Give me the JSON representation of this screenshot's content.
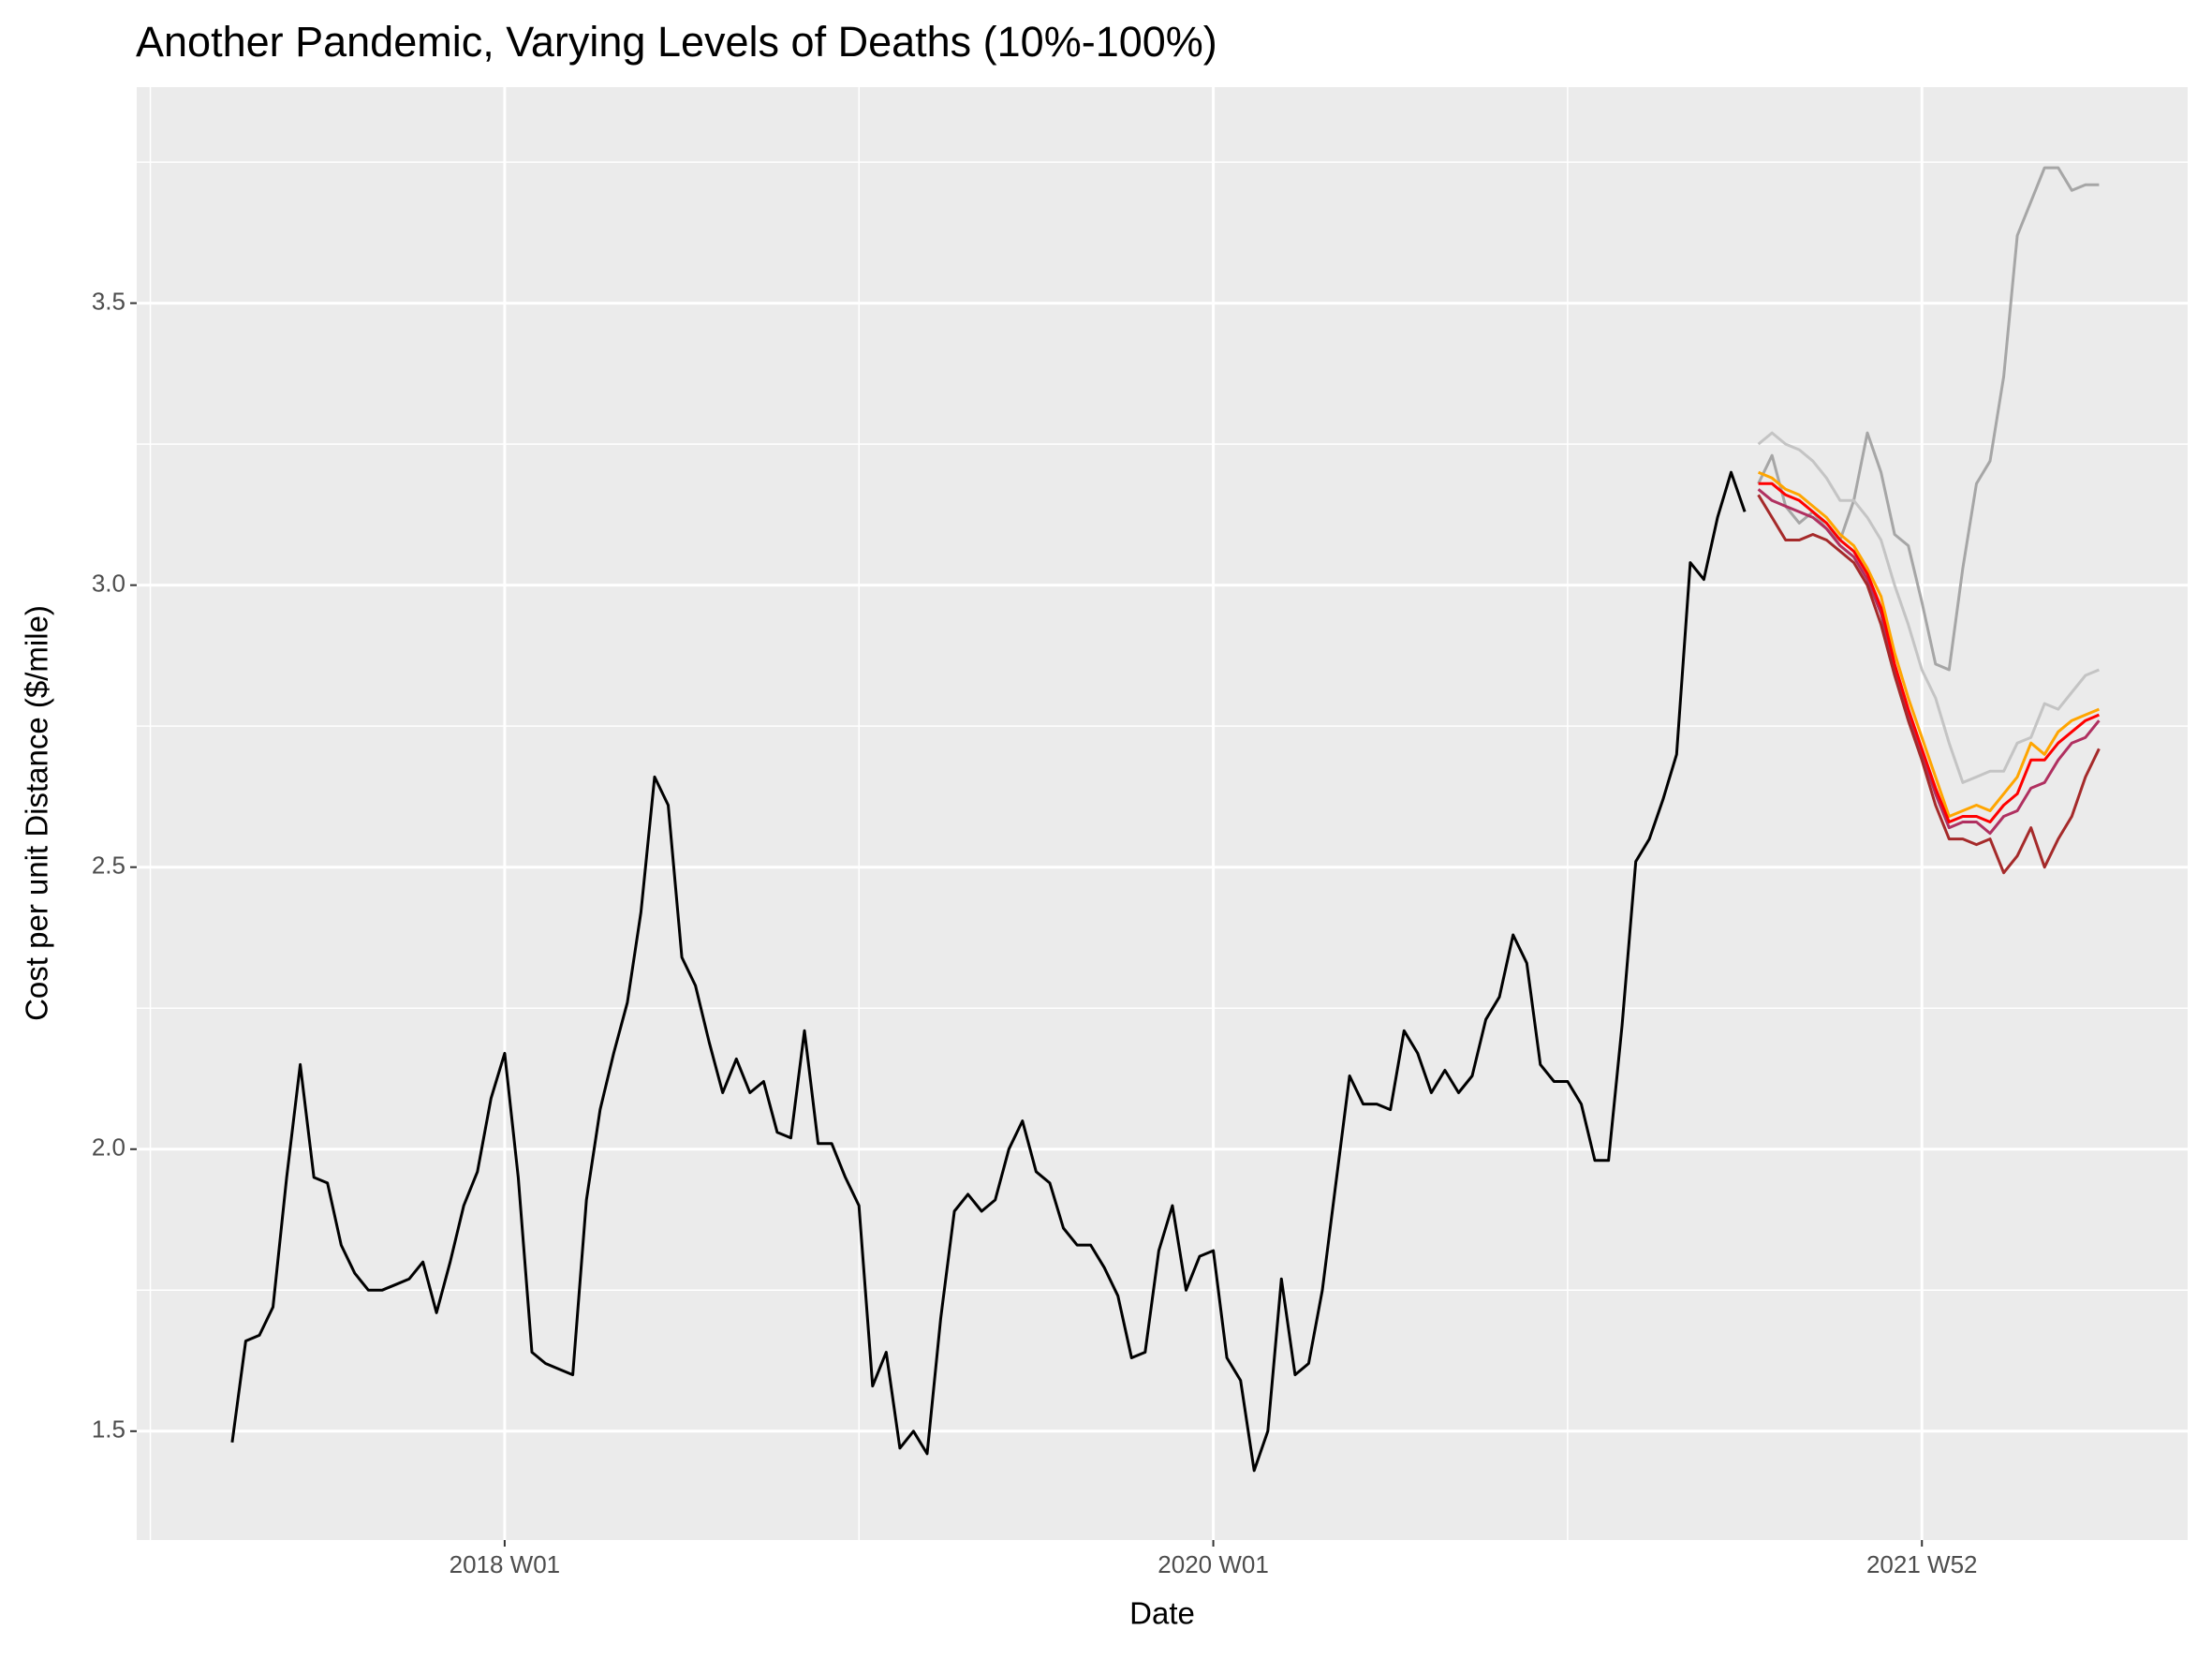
{
  "chart_data": {
    "type": "line",
    "title": "Another Pandemic, Varying Levels of Deaths (10%-100%)",
    "x_label": "Date",
    "y_label": "Cost per unit Distance ($/mile)",
    "xlim": [
      "2016 W51",
      "2022 W39"
    ],
    "xticks": [
      "2018 W01",
      "2020 W01",
      "2021 W52"
    ],
    "ylim": [
      1.307,
      3.883
    ],
    "yticks": [
      {
        "value": 1.5,
        "label": "1.5"
      },
      {
        "value": 2,
        "label": "2.0"
      },
      {
        "value": 2.5,
        "label": "2.5"
      },
      {
        "value": 3,
        "label": "3.0"
      },
      {
        "value": 3.5,
        "label": "3.5"
      }
    ],
    "grid": true,
    "minor_grid": true,
    "series": [
      {
        "color": "#000000",
        "x": [
          "2017 W13",
          "2017 W15",
          "2017 W17",
          "2017 W19",
          "2017 W21",
          "2017 W23",
          "2017 W25",
          "2017 W27",
          "2017 W29",
          "2017 W31",
          "2017 W33",
          "2017 W35",
          "2017 W37",
          "2017 W39",
          "2017 W41",
          "2017 W43",
          "2017 W45",
          "2017 W47",
          "2017 W49",
          "2017 W51",
          "2018 W01",
          "2018 W03",
          "2018 W05",
          "2018 W07",
          "2018 W09",
          "2018 W11",
          "2018 W13",
          "2018 W15",
          "2018 W17",
          "2018 W19",
          "2018 W21",
          "2018 W23",
          "2018 W25",
          "2018 W27",
          "2018 W29",
          "2018 W31",
          "2018 W33",
          "2018 W35",
          "2018 W37",
          "2018 W39",
          "2018 W41",
          "2018 W43",
          "2018 W45",
          "2018 W47",
          "2018 W49",
          "2018 W51",
          "2019 W01",
          "2019 W03",
          "2019 W05",
          "2019 W07",
          "2019 W09",
          "2019 W11",
          "2019 W13",
          "2019 W15",
          "2019 W17",
          "2019 W19",
          "2019 W21",
          "2019 W23",
          "2019 W25",
          "2019 W27",
          "2019 W29",
          "2019 W31",
          "2019 W33",
          "2019 W35",
          "2019 W37",
          "2019 W39",
          "2019 W41",
          "2019 W43",
          "2019 W45",
          "2019 W47",
          "2019 W49",
          "2019 W51",
          "2020 W01",
          "2020 W03",
          "2020 W05",
          "2020 W07",
          "2020 W09",
          "2020 W11",
          "2020 W13",
          "2020 W15",
          "2020 W17",
          "2020 W19",
          "2020 W21",
          "2020 W23",
          "2020 W25",
          "2020 W27",
          "2020 W29",
          "2020 W31",
          "2020 W33",
          "2020 W35",
          "2020 W37",
          "2020 W39",
          "2020 W41",
          "2020 W43",
          "2020 W45",
          "2020 W47",
          "2020 W49",
          "2020 W51",
          "2020 W53",
          "2021 W02",
          "2021 W04",
          "2021 W06",
          "2021 W08",
          "2021 W10",
          "2021 W12",
          "2021 W14",
          "2021 W16",
          "2021 W18",
          "2021 W20",
          "2021 W22",
          "2021 W24",
          "2021 W26"
        ],
        "values": [
          1.48,
          1.66,
          1.67,
          1.72,
          1.95,
          2.15,
          1.95,
          1.94,
          1.83,
          1.78,
          1.75,
          1.75,
          1.76,
          1.77,
          1.8,
          1.71,
          1.8,
          1.9,
          1.96,
          2.09,
          2.17,
          1.95,
          1.64,
          1.62,
          1.61,
          1.6,
          1.91,
          2.07,
          2.17,
          2.26,
          2.42,
          2.66,
          2.61,
          2.34,
          2.29,
          2.19,
          2.1,
          2.16,
          2.1,
          2.12,
          2.03,
          2.02,
          2.21,
          2.01,
          2.01,
          1.95,
          1.9,
          1.58,
          1.64,
          1.47,
          1.5,
          1.46,
          1.7,
          1.89,
          1.92,
          1.89,
          1.91,
          2.0,
          2.05,
          1.96,
          1.94,
          1.86,
          1.83,
          1.83,
          1.79,
          1.74,
          1.63,
          1.64,
          1.82,
          1.9,
          1.75,
          1.81,
          1.82,
          1.63,
          1.59,
          1.43,
          1.5,
          1.77,
          1.6,
          1.62,
          1.75,
          1.94,
          2.13,
          2.08,
          2.08,
          2.07,
          2.21,
          2.17,
          2.1,
          2.14,
          2.1,
          2.13,
          2.23,
          2.27,
          2.38,
          2.33,
          2.15,
          2.12,
          2.12,
          2.08,
          1.98,
          1.98,
          2.22,
          2.51,
          2.55,
          2.62,
          2.7,
          3.04,
          3.01,
          3.12,
          3.2,
          3.13
        ]
      },
      {
        "color": "#a6a6a6",
        "x": [
          "2021 W28",
          "2021 W30",
          "2021 W32",
          "2021 W34",
          "2021 W36",
          "2021 W38",
          "2021 W40",
          "2021 W42",
          "2021 W44",
          "2021 W46",
          "2021 W48",
          "2021 W50",
          "2021 W52",
          "2022 W02",
          "2022 W04",
          "2022 W06",
          "2022 W08",
          "2022 W10",
          "2022 W12",
          "2022 W14",
          "2022 W16",
          "2022 W18",
          "2022 W20",
          "2022 W22",
          "2022 W24",
          "2022 W26"
        ],
        "values": [
          3.18,
          3.23,
          3.14,
          3.11,
          3.13,
          3.1,
          3.08,
          3.15,
          3.27,
          3.2,
          3.09,
          3.07,
          2.97,
          2.86,
          2.85,
          3.03,
          3.18,
          3.22,
          3.37,
          3.62,
          3.68,
          3.74,
          3.74,
          3.7,
          3.71,
          3.71
        ]
      },
      {
        "color": "#c4c4c4",
        "x": [
          "2021 W28",
          "2021 W30",
          "2021 W32",
          "2021 W34",
          "2021 W36",
          "2021 W38",
          "2021 W40",
          "2021 W42",
          "2021 W44",
          "2021 W46",
          "2021 W48",
          "2021 W50",
          "2021 W52",
          "2022 W02",
          "2022 W04",
          "2022 W06",
          "2022 W08",
          "2022 W10",
          "2022 W12",
          "2022 W14",
          "2022 W16",
          "2022 W18",
          "2022 W20",
          "2022 W22",
          "2022 W24",
          "2022 W26"
        ],
        "values": [
          3.25,
          3.27,
          3.25,
          3.24,
          3.22,
          3.19,
          3.15,
          3.15,
          3.12,
          3.08,
          3.0,
          2.93,
          2.85,
          2.8,
          2.72,
          2.65,
          2.66,
          2.67,
          2.67,
          2.72,
          2.73,
          2.79,
          2.78,
          2.81,
          2.84,
          2.85
        ]
      },
      {
        "color": "#ffa500",
        "x": [
          "2021 W28",
          "2021 W30",
          "2021 W32",
          "2021 W34",
          "2021 W36",
          "2021 W38",
          "2021 W40",
          "2021 W42",
          "2021 W44",
          "2021 W46",
          "2021 W48",
          "2021 W50",
          "2021 W52",
          "2022 W02",
          "2022 W04",
          "2022 W06",
          "2022 W08",
          "2022 W10",
          "2022 W12",
          "2022 W14",
          "2022 W16",
          "2022 W18",
          "2022 W20",
          "2022 W22",
          "2022 W24",
          "2022 W26"
        ],
        "values": [
          3.2,
          3.19,
          3.17,
          3.16,
          3.14,
          3.12,
          3.09,
          3.07,
          3.03,
          2.98,
          2.88,
          2.8,
          2.73,
          2.66,
          2.59,
          2.6,
          2.61,
          2.6,
          2.63,
          2.66,
          2.72,
          2.7,
          2.74,
          2.76,
          2.77,
          2.78
        ]
      },
      {
        "color": "#b03060",
        "x": [
          "2021 W28",
          "2021 W30",
          "2021 W32",
          "2021 W34",
          "2021 W36",
          "2021 W38",
          "2021 W40",
          "2021 W42",
          "2021 W44",
          "2021 W46",
          "2021 W48",
          "2021 W50",
          "2021 W52",
          "2022 W02",
          "2022 W04",
          "2022 W06",
          "2022 W08",
          "2022 W10",
          "2022 W12",
          "2022 W14",
          "2022 W16",
          "2022 W18",
          "2022 W20",
          "2022 W22",
          "2022 W24",
          "2022 W26"
        ],
        "values": [
          3.17,
          3.15,
          3.14,
          3.13,
          3.12,
          3.1,
          3.07,
          3.05,
          3.01,
          2.95,
          2.85,
          2.77,
          2.7,
          2.63,
          2.57,
          2.58,
          2.58,
          2.56,
          2.59,
          2.6,
          2.64,
          2.65,
          2.69,
          2.72,
          2.73,
          2.76
        ]
      },
      {
        "color": "#ff0000",
        "x": [
          "2021 W28",
          "2021 W30",
          "2021 W32",
          "2021 W34",
          "2021 W36",
          "2021 W38",
          "2021 W40",
          "2021 W42",
          "2021 W44",
          "2021 W46",
          "2021 W48",
          "2021 W50",
          "2021 W52",
          "2022 W02",
          "2022 W04",
          "2022 W06",
          "2022 W08",
          "2022 W10",
          "2022 W12",
          "2022 W14",
          "2022 W16",
          "2022 W18",
          "2022 W20",
          "2022 W22",
          "2022 W24",
          "2022 W26"
        ],
        "values": [
          3.18,
          3.18,
          3.16,
          3.15,
          3.13,
          3.11,
          3.08,
          3.06,
          3.02,
          2.96,
          2.86,
          2.78,
          2.71,
          2.64,
          2.58,
          2.59,
          2.59,
          2.58,
          2.61,
          2.63,
          2.69,
          2.69,
          2.72,
          2.74,
          2.76,
          2.77
        ]
      },
      {
        "color": "#a52a2a",
        "x": [
          "2021 W28",
          "2021 W30",
          "2021 W32",
          "2021 W34",
          "2021 W36",
          "2021 W38",
          "2021 W40",
          "2021 W42",
          "2021 W44",
          "2021 W46",
          "2021 W48",
          "2021 W50",
          "2021 W52",
          "2022 W02",
          "2022 W04",
          "2022 W06",
          "2022 W08",
          "2022 W10",
          "2022 W12",
          "2022 W14",
          "2022 W16",
          "2022 W18",
          "2022 W20",
          "2022 W22",
          "2022 W24",
          "2022 W26"
        ],
        "values": [
          3.16,
          3.12,
          3.08,
          3.08,
          3.09,
          3.08,
          3.06,
          3.04,
          3.0,
          2.93,
          2.84,
          2.76,
          2.69,
          2.61,
          2.55,
          2.55,
          2.54,
          2.55,
          2.49,
          2.52,
          2.57,
          2.5,
          2.55,
          2.59,
          2.66,
          2.71
        ]
      }
    ]
  }
}
